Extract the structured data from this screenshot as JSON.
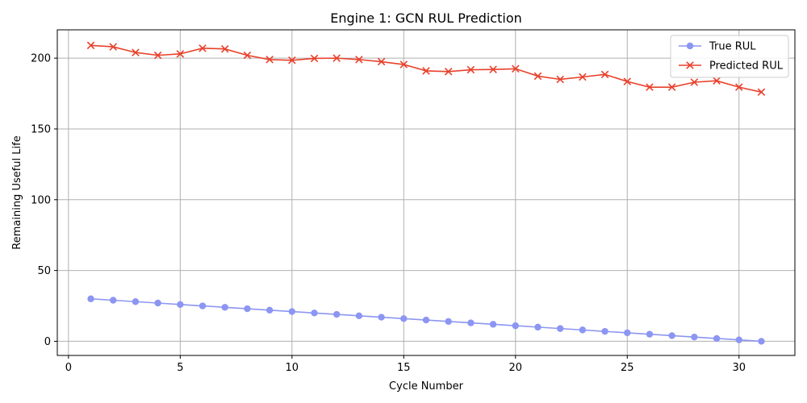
{
  "chart_data": {
    "type": "line",
    "title": "Engine 1: GCN RUL Prediction",
    "xlabel": "Cycle Number",
    "ylabel": "Remaining Useful Life",
    "xlim": [
      -0.5,
      32.5
    ],
    "ylim": [
      -10,
      220
    ],
    "xticks": [
      0,
      5,
      10,
      15,
      20,
      25,
      30
    ],
    "yticks": [
      0,
      50,
      100,
      150,
      200
    ],
    "grid": true,
    "legend_position": "top-right",
    "x": [
      1,
      2,
      3,
      4,
      5,
      6,
      7,
      8,
      9,
      10,
      11,
      12,
      13,
      14,
      15,
      16,
      17,
      18,
      19,
      20,
      21,
      22,
      23,
      24,
      25,
      26,
      27,
      28,
      29,
      30,
      31
    ],
    "series": [
      {
        "name": "True RUL",
        "color": "#8c96f2",
        "marker": "circle",
        "values": [
          30,
          29,
          28,
          27,
          26,
          25,
          24,
          23,
          22,
          21,
          20,
          19,
          18,
          17,
          16,
          15,
          14,
          13,
          12,
          11,
          10,
          9,
          8,
          7,
          6,
          5,
          4,
          3,
          2,
          1,
          0
        ]
      },
      {
        "name": "Predicted RUL",
        "color": "#e8412b",
        "marker": "x",
        "values": [
          209,
          208,
          204,
          202,
          203,
          207,
          206.5,
          202,
          199,
          198.5,
          199.8,
          200,
          199,
          197.5,
          195.5,
          191,
          190.5,
          191.8,
          192,
          192.5,
          187.3,
          185,
          186.7,
          188.5,
          183.5,
          179.5,
          179.5,
          183,
          184,
          179.5,
          176
        ]
      }
    ]
  }
}
